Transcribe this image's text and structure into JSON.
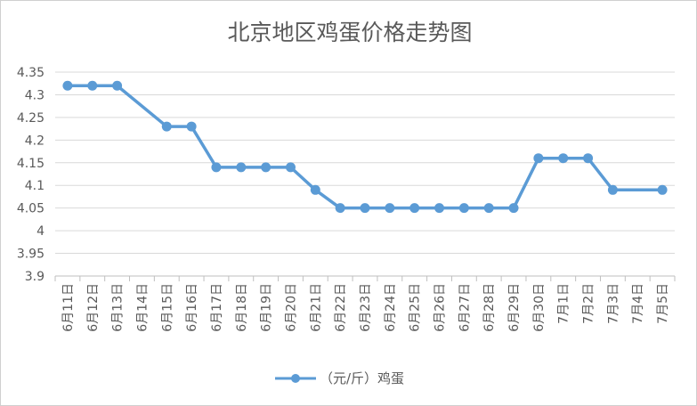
{
  "chart_data": {
    "type": "line",
    "title": "北京地区鸡蛋价格走势图",
    "xlabel": "",
    "ylabel": "",
    "categories": [
      "6月11日",
      "6月12日",
      "6月13日",
      "6月14日",
      "6月15日",
      "6月16日",
      "6月17日",
      "6月18日",
      "6月19日",
      "6月20日",
      "6月21日",
      "6月22日",
      "6月23日",
      "6月24日",
      "6月25日",
      "6月26日",
      "6月27日",
      "6月28日",
      "6月29日",
      "6月30日",
      "7月1日",
      "7月2日",
      "7月3日",
      "7月4日",
      "7月5日"
    ],
    "series": [
      {
        "name": "（元/斤）鸡蛋",
        "values": [
          4.32,
          4.32,
          4.32,
          null,
          4.23,
          4.23,
          4.14,
          4.14,
          4.14,
          4.14,
          4.09,
          4.05,
          4.05,
          4.05,
          4.05,
          4.05,
          4.05,
          4.05,
          4.05,
          4.16,
          4.16,
          4.16,
          4.09,
          null,
          4.09
        ],
        "color": "#5b9bd5"
      }
    ],
    "ylim": [
      3.9,
      4.35
    ],
    "yticks": [
      "4.35",
      "4.3",
      "4.25",
      "4.2",
      "4.15",
      "4.1",
      "4.05",
      "4",
      "3.95",
      "3.9"
    ],
    "grid": true,
    "legend": "bottom"
  }
}
